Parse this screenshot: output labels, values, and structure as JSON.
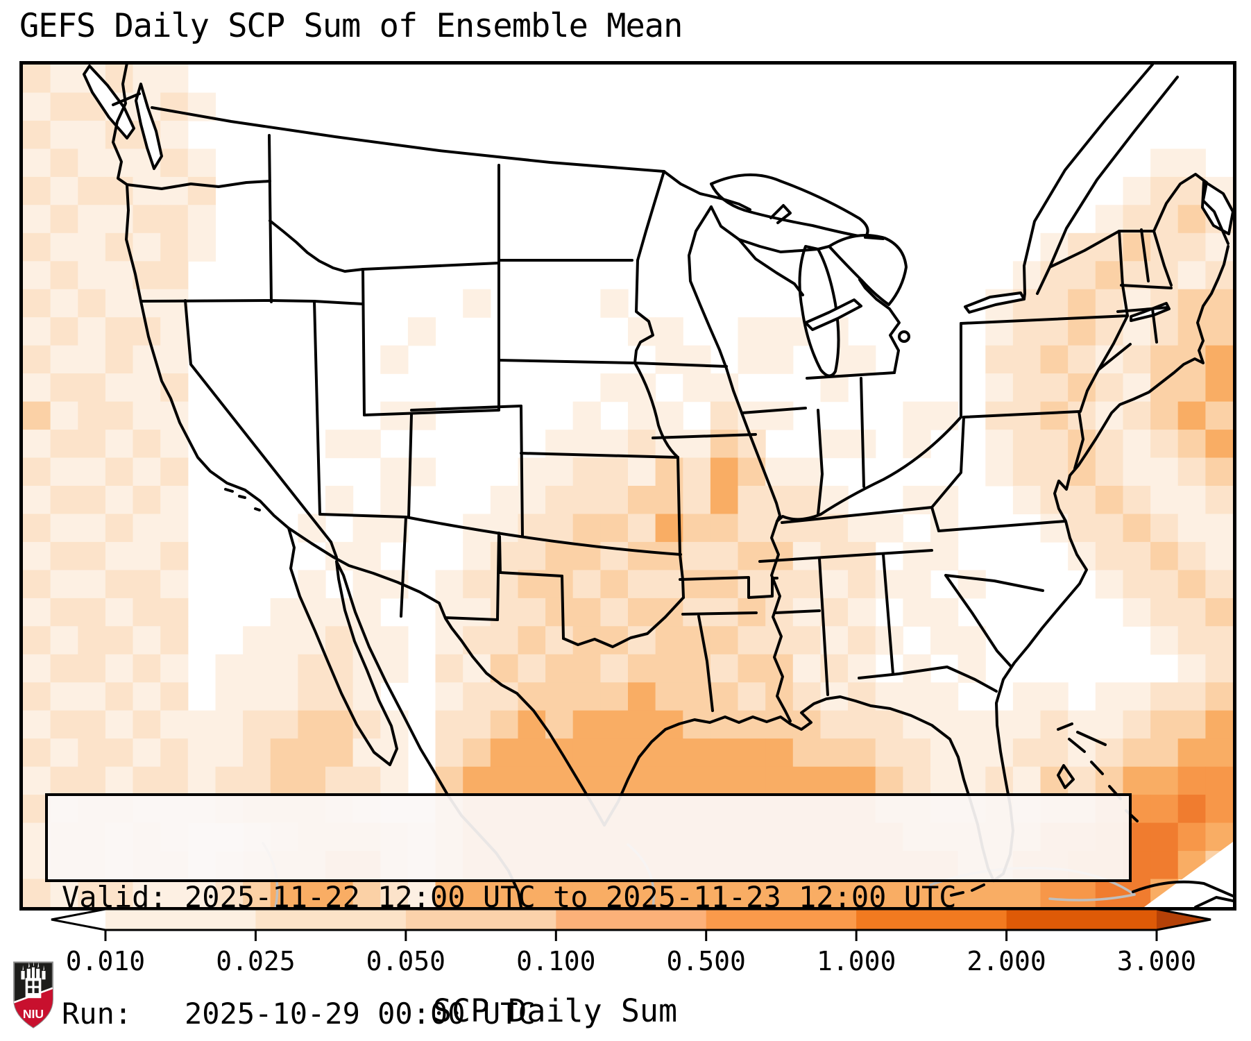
{
  "header": {
    "title": "GEFS Daily SCP Sum of Ensemble Mean"
  },
  "infobox": {
    "line1": "Valid: 2025-11-22 12:00 UTC to 2025-11-23 12:00 UTC",
    "line2": "Run:   2025-10-29 00:00 UTC"
  },
  "colorbar": {
    "label": "SCP Daily Sum",
    "ticks": [
      "0.010",
      "0.025",
      "0.050",
      "0.100",
      "0.500",
      "1.000",
      "2.000",
      "3.000"
    ],
    "segment_colors": [
      "#fdf0e2",
      "#fce3c8",
      "#fbd2ab",
      "#fcb179",
      "#fa9a4b",
      "#f27a20",
      "#de5a07"
    ],
    "under_color": "#ffffff",
    "over_color": "#b54107",
    "outline_color": "#000000"
  },
  "logo": {
    "text": "NIU",
    "shield_dark": "#1d1d1b",
    "shield_red": "#c8102e"
  },
  "map": {
    "palette": [
      "",
      "#fdf0e3",
      "#fce3ca",
      "#fbd1a6",
      "#f9ad64",
      "#f79749",
      "#f07c2f"
    ],
    "cols": 44,
    "rows": 30,
    "grid": [
      "21121100000000000000000000000000000000000000",
      "12211210000000000000000000000000000000000000",
      "21122100000000000000000000000000000000000000",
      "12111210000000000000000000000000000000000110",
      "21221120000000000000000000000000000000001221",
      "12112210000000000000000000000000000000012232",
      "21121210000000000000000000000000000001223221",
      "12112200000000000000000000000000000012232212",
      "21211100000000001000010000000000000122321233",
      "12122100000000100000001100111100000122321233",
      "21121100000001000000000110110110000223212334",
      "12211200000000000000011011000100000122321334",
      "31221100000001100000101102110000110223212343",
      "12212100000110000001112113200110100122321234",
      "21121200000001100011221324311000000122321123",
      "12212100000101000112223324222100110012232112",
      "21121100001011001122332433222211010001223211",
      "12211200000110001223323322331220110000122321",
      "21122100001011012233232233222121101000012232",
      "12212200011110011223323322321210110000001223",
      "21221200111211012232332333222121011000000122",
      "12212101112211021323323332331210101000000012",
      "21121201112210012233334333232121110011011223",
      "12212111223321022343444433333222111112112334",
      "21221211233311023444444444443332211122123344",
      "12212212233221034444444444444443211213234455",
      "21221112333210034444444444444443322323345565",
      "12212100123332134444444444444444333334456654",
      "12212201233442134444444444444444443344556643",
      "21221112344432144444444444444444444445566400"
    ]
  }
}
